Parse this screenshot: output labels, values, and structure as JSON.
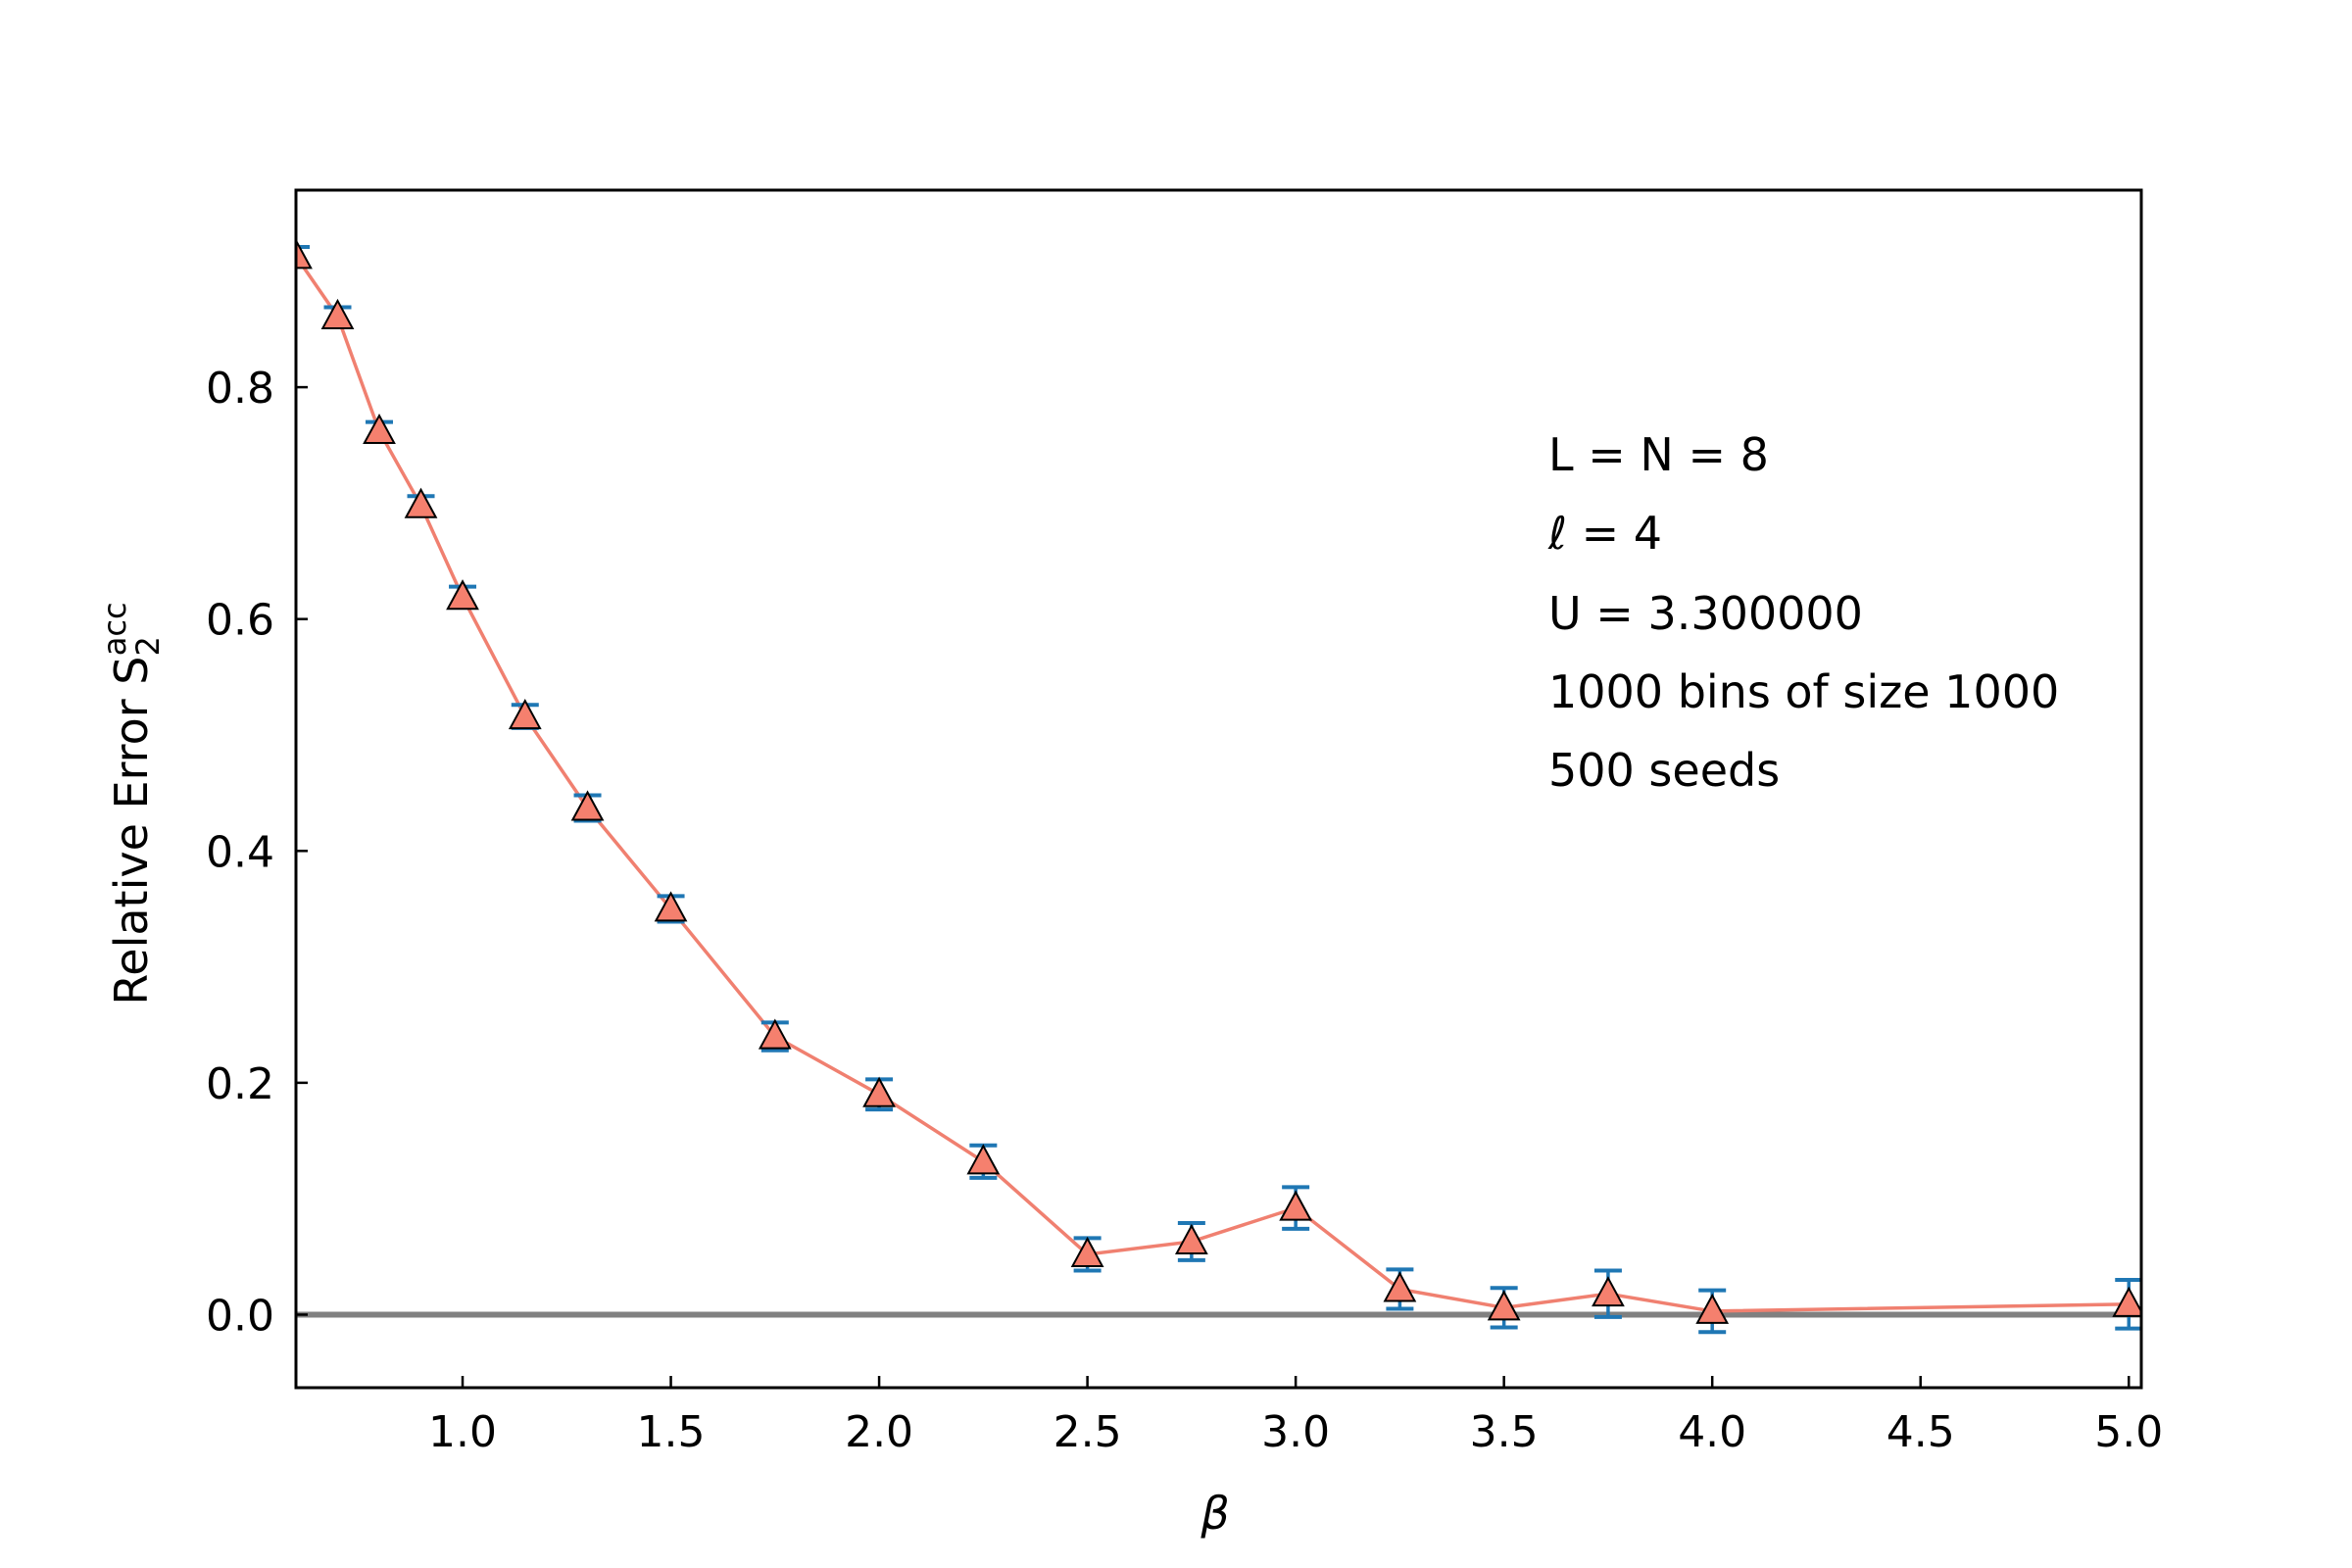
{
  "chart_data": {
    "type": "scatter",
    "title": "",
    "xlabel": "β",
    "ylabel": {
      "base": "Relative Error S",
      "subscript": "2",
      "superscript": "acc"
    },
    "xlim": [
      0.6,
      5.03
    ],
    "ylim": [
      -0.063,
      0.97
    ],
    "xticks": [
      1.0,
      1.5,
      2.0,
      2.5,
      3.0,
      3.5,
      4.0,
      4.5,
      5.0
    ],
    "xtick_labels": [
      "1.0",
      "1.5",
      "2.0",
      "2.5",
      "3.0",
      "3.5",
      "4.0",
      "4.5",
      "5.0"
    ],
    "yticks": [
      0.0,
      0.2,
      0.4,
      0.6,
      0.8
    ],
    "ytick_labels": [
      "0.0",
      "0.2",
      "0.4",
      "0.6",
      "0.8"
    ],
    "reference_line_y": 0.0,
    "grid": false,
    "legend": "none",
    "annotations": [
      "L = N = 8",
      "ℓ = 4",
      "U = 3.300000",
      "1000 bins of size 1000",
      "500 seeds"
    ],
    "series": [
      {
        "marker": "triangle",
        "x": [
          0.6,
          0.7,
          0.8,
          0.9,
          1.0,
          1.15,
          1.3,
          1.5,
          1.75,
          2.0,
          2.25,
          2.5,
          2.75,
          3.0,
          3.25,
          3.5,
          3.75,
          4.0,
          5.0
        ],
        "y": [
          0.913,
          0.861,
          0.762,
          0.698,
          0.619,
          0.516,
          0.437,
          0.35,
          0.24,
          0.19,
          0.132,
          0.052,
          0.063,
          0.092,
          0.022,
          0.006,
          0.018,
          0.003,
          0.009
        ],
        "err": [
          0.008,
          0.008,
          0.008,
          0.008,
          0.009,
          0.01,
          0.011,
          0.011,
          0.012,
          0.013,
          0.014,
          0.014,
          0.016,
          0.018,
          0.017,
          0.017,
          0.02,
          0.018,
          0.021
        ]
      }
    ],
    "colors": {
      "line": "#f08070",
      "marker_fill": "#f5806e",
      "marker_edge": "#000000",
      "errorbar": "#1f77b4",
      "reference_line": "#808080",
      "axes": "#000000"
    }
  }
}
